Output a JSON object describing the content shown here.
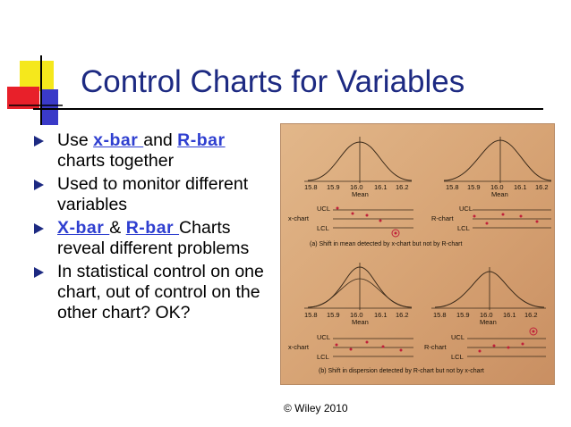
{
  "slide": {
    "title": "Control Charts for Variables",
    "credit": "© Wiley 2010",
    "bullets": [
      {
        "parts": [
          {
            "text": "Use ",
            "kw": false
          },
          {
            "text": "x-bar ",
            "kw": true
          },
          {
            "text": "and ",
            "kw": false
          },
          {
            "text": "R-bar ",
            "kw": true
          },
          {
            "text": "charts together",
            "kw": false
          }
        ]
      },
      {
        "parts": [
          {
            "text": "Used to monitor different variables",
            "kw": false
          }
        ]
      },
      {
        "parts": [
          {
            "text": "X-bar ",
            "kw": true
          },
          {
            "text": "& ",
            "kw": false
          },
          {
            "text": "R-bar ",
            "kw": true
          },
          {
            "text": "Charts reveal different problems",
            "kw": false
          }
        ]
      },
      {
        "parts": [
          {
            "text": "In statistical control on one chart, out of control on the other chart? OK?",
            "kw": false
          }
        ]
      }
    ]
  },
  "figure": {
    "axis_ticks": [
      "15.8",
      "15.9",
      "16.0",
      "16.1",
      "16.2"
    ],
    "mean_label": "Mean",
    "ucl": "UCL",
    "lcl": "LCL",
    "xchart_label": "x-chart",
    "rchart_label": "R-chart",
    "caption_a": "(a) Shift in mean detected by x-chart but not by R-chart",
    "caption_b": "(b) Shift in dispersion detected by R-chart but not by x-chart"
  },
  "colors": {
    "title": "#1d2a82",
    "keyword": "#2f3fd0",
    "point": "#c0203a",
    "figure_bg": "#d6a273"
  }
}
